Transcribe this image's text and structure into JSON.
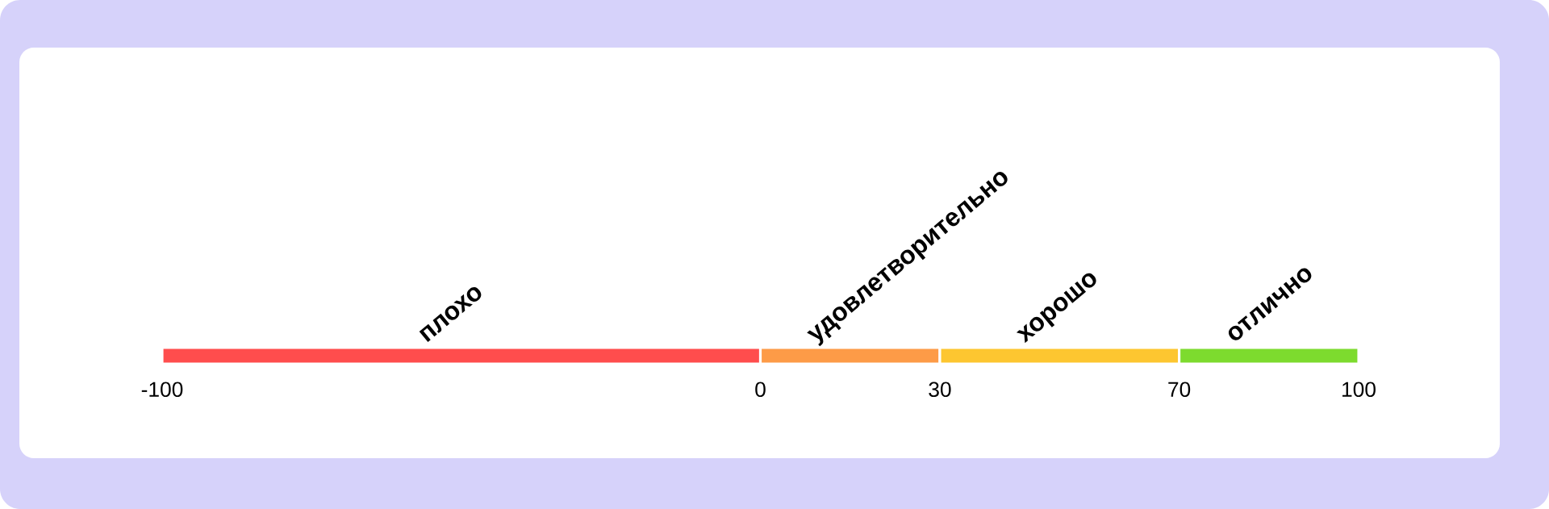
{
  "chart_data": {
    "type": "bar",
    "orientation": "horizontal",
    "categories": [
      null
    ],
    "xlim": [
      -100,
      100
    ],
    "xticks": [
      -100,
      0,
      30,
      70,
      100
    ],
    "series": [
      {
        "name": "плохо",
        "color": "#ff4d4d",
        "values": [
          100
        ],
        "base": [
          -100
        ]
      },
      {
        "name": "удовлетворительно",
        "color": "#fd9b47",
        "values": [
          30
        ],
        "base": [
          0
        ]
      },
      {
        "name": "хорошо",
        "color": "#fdc630",
        "values": [
          40
        ],
        "base": [
          30
        ]
      },
      {
        "name": "отлично",
        "color": "#7ddb2e",
        "values": [
          30
        ],
        "base": [
          70
        ]
      }
    ]
  }
}
